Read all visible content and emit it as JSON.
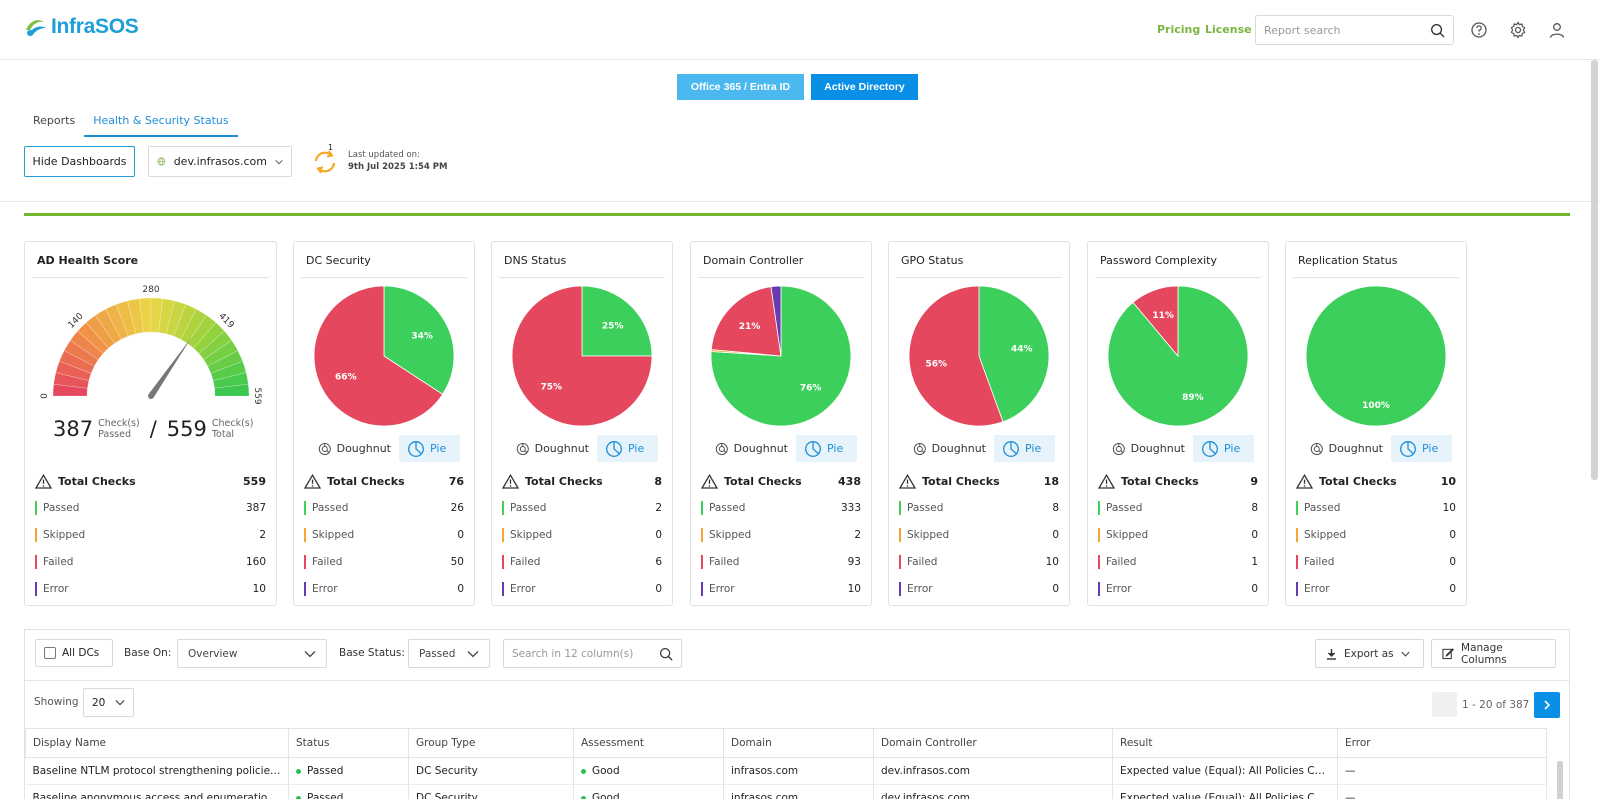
{
  "header": {
    "logo_text": "InfraSOS",
    "pricing_label": "Pricing",
    "license_label": "License",
    "search_placeholder": "Report search",
    "icons": [
      "help-icon",
      "gear-icon",
      "user-icon"
    ]
  },
  "product_tabs": {
    "office365_label": "Office 365 / Entra ID",
    "ad_label": "Active Directory"
  },
  "page_tabs": [
    {
      "label": "Reports",
      "active": false
    },
    {
      "label": "Health & Security Status",
      "active": true
    }
  ],
  "controls": {
    "hide_dashboards_label": "Hide Dashboards",
    "domain_value": "dev.infrasos.com",
    "refresh_badge": "1",
    "last_updated_label": "Last updated on:",
    "last_updated_value": "9th Jul 2025 1:54 PM"
  },
  "colors": {
    "passed": "#3dcf5c",
    "failed": "#e5485e",
    "skipped": "#f5a43a",
    "error": "#6a3bb0",
    "accent": "#0a8fe6",
    "brand_green": "#70b72a"
  },
  "health_card": {
    "title": "AD Health Score",
    "gauge_ticks": [
      "0",
      "140",
      "280",
      "419",
      "559"
    ],
    "gauge_value": 387,
    "gauge_max": 559,
    "passed_num": "387",
    "passed_lbl1": "Check(s)",
    "passed_lbl2": "Passed",
    "slash": "/",
    "total_num": "559",
    "total_lbl1": "Check(s)",
    "total_lbl2": "Total",
    "total_label": "Total Checks",
    "total": "559",
    "passed_label": "Passed",
    "passed": "387",
    "skipped_label": "Skipped",
    "skipped": "2",
    "failed_label": "Failed",
    "failed": "160",
    "error_label": "Error",
    "error": "10"
  },
  "toggle": {
    "doughnut_label": "Doughnut",
    "pie_label": "Pie"
  },
  "cards": [
    {
      "title": "DC Security",
      "total_label": "Total Checks",
      "total": "76",
      "passed_label": "Passed",
      "passed": "26",
      "skipped_label": "Skipped",
      "skipped": "0",
      "failed_label": "Failed",
      "failed": "50",
      "error_label": "Error",
      "error": "0",
      "slices": [
        {
          "label": "34%",
          "value": 26,
          "color": "#3dcf5c"
        },
        {
          "label": "66%",
          "value": 50,
          "color": "#e5485e"
        }
      ]
    },
    {
      "title": "DNS Status",
      "total_label": "Total Checks",
      "total": "8",
      "passed_label": "Passed",
      "passed": "2",
      "skipped_label": "Skipped",
      "skipped": "0",
      "failed_label": "Failed",
      "failed": "6",
      "error_label": "Error",
      "error": "0",
      "slices": [
        {
          "label": "25%",
          "value": 2,
          "color": "#3dcf5c"
        },
        {
          "label": "75%",
          "value": 6,
          "color": "#e5485e"
        }
      ]
    },
    {
      "title": "Domain Controller",
      "total_label": "Total Checks",
      "total": "438",
      "passed_label": "Passed",
      "passed": "333",
      "skipped_label": "Skipped",
      "skipped": "2",
      "failed_label": "Failed",
      "failed": "93",
      "error_label": "Error",
      "error": "10",
      "slices": [
        {
          "label": "76%",
          "value": 333,
          "color": "#3dcf5c"
        },
        {
          "label": "",
          "value": 2,
          "color": "#f5a43a"
        },
        {
          "label": "21%",
          "value": 93,
          "color": "#e5485e"
        },
        {
          "label": "",
          "value": 10,
          "color": "#6a3bb0"
        }
      ]
    },
    {
      "title": "GPO Status",
      "total_label": "Total Checks",
      "total": "18",
      "passed_label": "Passed",
      "passed": "8",
      "skipped_label": "Skipped",
      "skipped": "0",
      "failed_label": "Failed",
      "failed": "10",
      "error_label": "Error",
      "error": "0",
      "slices": [
        {
          "label": "44%",
          "value": 8,
          "color": "#3dcf5c"
        },
        {
          "label": "56%",
          "value": 10,
          "color": "#e5485e"
        }
      ]
    },
    {
      "title": "Password Complexity",
      "total_label": "Total Checks",
      "total": "9",
      "passed_label": "Passed",
      "passed": "8",
      "skipped_label": "Skipped",
      "skipped": "0",
      "failed_label": "Failed",
      "failed": "1",
      "error_label": "Error",
      "error": "0",
      "slices": [
        {
          "label": "89%",
          "value": 8,
          "color": "#3dcf5c"
        },
        {
          "label": "11%",
          "value": 1,
          "color": "#e5485e"
        }
      ]
    },
    {
      "title": "Replication Status",
      "total_label": "Total Checks",
      "total": "10",
      "passed_label": "Passed",
      "passed": "10",
      "skipped_label": "Skipped",
      "skipped": "0",
      "failed_label": "Failed",
      "failed": "0",
      "error_label": "Error",
      "error": "0",
      "slices": [
        {
          "label": "100%",
          "value": 10,
          "color": "#3dcf5c"
        }
      ]
    }
  ],
  "toolbar": {
    "all_dcs_label": "All DCs",
    "base_on_label": "Base On:",
    "base_on_value": "Overview",
    "base_status_label": "Base Status:",
    "base_status_value": "Passed",
    "search_placeholder": "Search in 12 column(s)",
    "export_label": "Export as",
    "manage_columns_label": "Manage Columns"
  },
  "pagination": {
    "showing_label": "Showing",
    "page_size": "20",
    "range_text": "1 - 20 of 387"
  },
  "table": {
    "columns": [
      "Display Name",
      "Status",
      "Group Type",
      "Assessment",
      "Domain",
      "Domain Controller",
      "Result",
      "Error"
    ],
    "rows": [
      [
        "Baseline NTLM protocol strengthening policies are configured",
        "Passed",
        "DC Security",
        "Good",
        "infrasos.com",
        "dev.infrasos.com",
        "Expected value (Equal): All Policies Configured",
        "—"
      ],
      [
        "Baseline anonymous access and enumeration restrictions",
        "Passed",
        "DC Security",
        "Good",
        "infrasos.com",
        "dev.infrasos.com",
        "Expected value (Equal): All Policies Configured",
        "—"
      ]
    ]
  }
}
